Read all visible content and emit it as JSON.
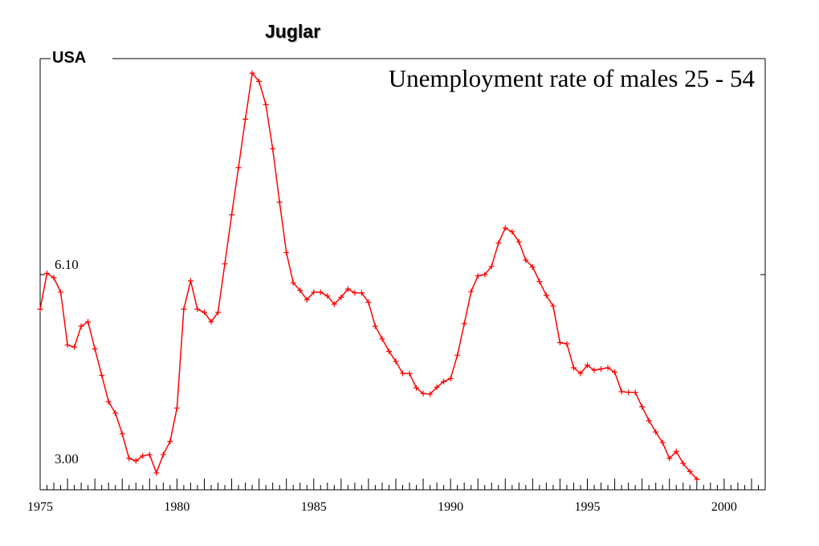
{
  "header": {
    "juglar_label": "Juglar"
  },
  "chart_data": {
    "type": "line",
    "title": "Unemployment rate of males 25 - 54",
    "country_label": "USA",
    "y_tick_labels": [
      "6.10",
      "3.00"
    ],
    "x_tick_labels": [
      "1975",
      "1980",
      "1985",
      "1990",
      "1995",
      "2000"
    ],
    "xlim": [
      1975,
      2001.5
    ],
    "ylim": [
      2.85,
      9.35
    ],
    "grid": false,
    "marker": "plus",
    "line_color": "#ff0000",
    "x": [
      1975.0,
      1975.25,
      1975.5,
      1975.75,
      1976.0,
      1976.25,
      1976.5,
      1976.75,
      1977.0,
      1977.25,
      1977.5,
      1977.75,
      1978.0,
      1978.25,
      1978.5,
      1978.75,
      1979.0,
      1979.25,
      1979.5,
      1979.75,
      1980.0,
      1980.25,
      1980.5,
      1980.75,
      1981.0,
      1981.25,
      1981.5,
      1981.75,
      1982.0,
      1982.25,
      1982.5,
      1982.75,
      1983.0,
      1983.25,
      1983.5,
      1983.75,
      1984.0,
      1984.25,
      1984.5,
      1984.75,
      1985.0,
      1985.25,
      1985.5,
      1985.75,
      1986.0,
      1986.25,
      1986.5,
      1986.75,
      1987.0,
      1987.25,
      1987.5,
      1987.75,
      1988.0,
      1988.25,
      1988.5,
      1988.75,
      1989.0,
      1989.25,
      1989.5,
      1989.75,
      1990.0,
      1990.25,
      1990.5,
      1990.75,
      1991.0,
      1991.25,
      1991.5,
      1991.75,
      1992.0,
      1992.25,
      1992.5,
      1992.75,
      1993.0,
      1993.25,
      1993.5,
      1993.75,
      1994.0,
      1994.25,
      1994.5,
      1994.75,
      1995.0,
      1995.25,
      1995.5,
      1995.75,
      1996.0,
      1996.25,
      1996.5,
      1996.75,
      1997.0,
      1997.25,
      1997.5,
      1997.75,
      1998.0,
      1998.25,
      1998.5,
      1998.75,
      1999.0
    ],
    "y": [
      5.55,
      6.12,
      6.05,
      5.82,
      4.98,
      4.95,
      5.28,
      5.35,
      4.92,
      4.5,
      4.08,
      3.9,
      3.57,
      3.18,
      3.14,
      3.22,
      3.24,
      2.95,
      3.24,
      3.45,
      3.98,
      5.55,
      6.0,
      5.55,
      5.5,
      5.35,
      5.5,
      6.27,
      7.05,
      7.8,
      8.57,
      9.3,
      9.17,
      8.8,
      8.1,
      7.25,
      6.45,
      5.97,
      5.85,
      5.7,
      5.82,
      5.82,
      5.76,
      5.63,
      5.74,
      5.87,
      5.81,
      5.81,
      5.66,
      5.28,
      5.08,
      4.88,
      4.72,
      4.53,
      4.53,
      4.3,
      4.21,
      4.2,
      4.31,
      4.4,
      4.45,
      4.82,
      5.32,
      5.83,
      6.08,
      6.1,
      6.23,
      6.6,
      6.84,
      6.78,
      6.62,
      6.33,
      6.22,
      5.99,
      5.77,
      5.6,
      5.02,
      5.0,
      4.62,
      4.53,
      4.66,
      4.58,
      4.6,
      4.62,
      4.55,
      4.24,
      4.23,
      4.23,
      4.0,
      3.78,
      3.6,
      3.43,
      3.18,
      3.29,
      3.1,
      2.97,
      2.85
    ]
  }
}
